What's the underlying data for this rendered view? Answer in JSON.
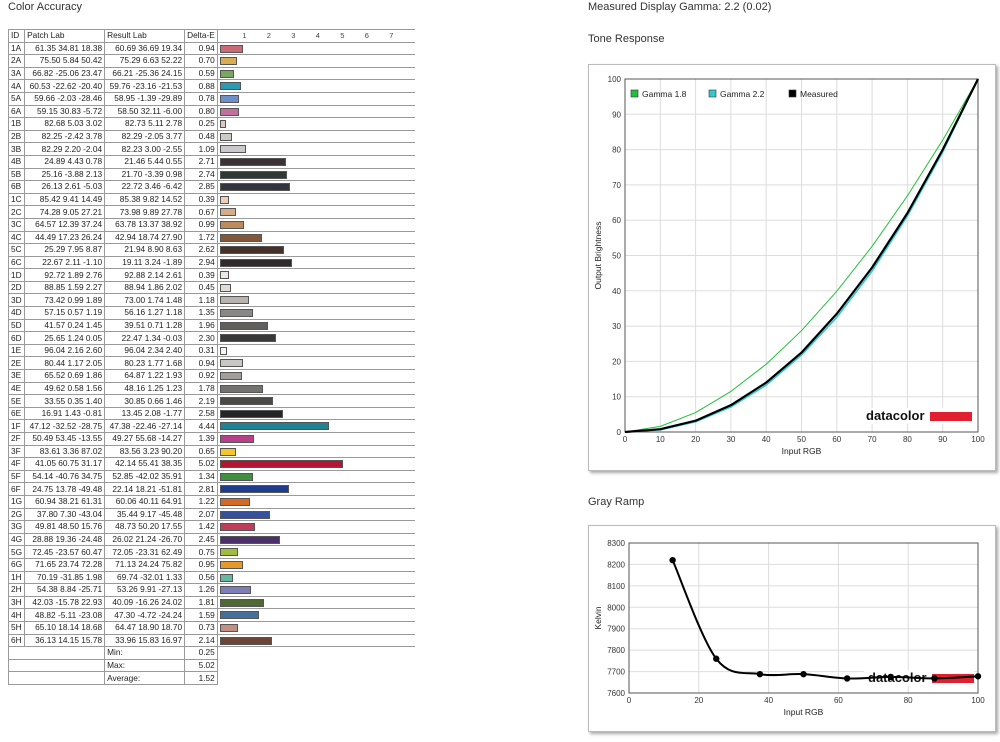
{
  "color_accuracy": {
    "title": "Color Accuracy",
    "headers": [
      "ID",
      "Patch Lab",
      "Result Lab",
      "Delta-E"
    ],
    "scale": [
      "1",
      "2",
      "3",
      "4",
      "5",
      "6",
      "7"
    ],
    "rows": [
      {
        "id": "1A",
        "patch": "61.35  34.81  18.38",
        "result": "60.69  36.69  19.34",
        "de": "0.94",
        "de_value": 0.94,
        "color": "#c96a74"
      },
      {
        "id": "2A",
        "patch": "75.50  5.84  50.42",
        "result": "75.29  6.63  52.22",
        "de": "0.70",
        "de_value": 0.7,
        "color": "#d8ae55"
      },
      {
        "id": "3A",
        "patch": "66.82 -25.06  23.47",
        "result": "66.21 -25.36  24.15",
        "de": "0.59",
        "de_value": 0.59,
        "color": "#78a85d"
      },
      {
        "id": "4A",
        "patch": "60.53 -22.62 -20.40",
        "result": "59.76 -23.16 -21.53",
        "de": "0.88",
        "de_value": 0.88,
        "color": "#2b9ab3"
      },
      {
        "id": "5A",
        "patch": "59.66  -2.03 -28.46",
        "result": "58.95  -1.39 -29.89",
        "de": "0.78",
        "de_value": 0.78,
        "color": "#6d8fcc"
      },
      {
        "id": "6A",
        "patch": "59.15  30.83  -5.72",
        "result": "58.50  32.11  -6.00",
        "de": "0.80",
        "de_value": 0.8,
        "color": "#c26fa0"
      },
      {
        "id": "1B",
        "patch": "82.68  5.03  3.02",
        "result": "82.73  5.11  2.78",
        "de": "0.25",
        "de_value": 0.25,
        "color": "#dac9c4"
      },
      {
        "id": "2B",
        "patch": "82.25  -2.42  3.78",
        "result": "82.29  -2.05  3.77",
        "de": "0.48",
        "de_value": 0.48,
        "color": "#c9cdc3"
      },
      {
        "id": "3B",
        "patch": "82.29  2.20  -2.04",
        "result": "82.23  3.00  -2.55",
        "de": "1.09",
        "de_value": 1.09,
        "color": "#ccc9ce"
      },
      {
        "id": "4B",
        "patch": "24.89  4.43  0.78",
        "result": "21.46  5.44  0.55",
        "de": "2.71",
        "de_value": 2.71,
        "color": "#3a3234"
      },
      {
        "id": "5B",
        "patch": "25.16  -3.88  2.13",
        "result": "21.70  -3.39  0.98",
        "de": "2.74",
        "de_value": 2.74,
        "color": "#2f3a33"
      },
      {
        "id": "6B",
        "patch": "26.13  2.61  -5.03",
        "result": "22.72  3.46  -6.42",
        "de": "2.85",
        "de_value": 2.85,
        "color": "#33343d"
      },
      {
        "id": "1C",
        "patch": "85.42  9.41  14.49",
        "result": "85.38  9.82  14.52",
        "de": "0.39",
        "de_value": 0.39,
        "color": "#f0cdb8"
      },
      {
        "id": "2C",
        "patch": "74.28  9.05  27.21",
        "result": "73.98  9.89  27.78",
        "de": "0.67",
        "de_value": 0.67,
        "color": "#d6ad8a"
      },
      {
        "id": "3C",
        "patch": "64.57  12.39  37.24",
        "result": "63.78  13.37  38.92",
        "de": "0.99",
        "de_value": 0.99,
        "color": "#bb8b5c"
      },
      {
        "id": "4C",
        "patch": "44.49  17.23  26.24",
        "result": "42.94  18.74  27.90",
        "de": "1.72",
        "de_value": 1.72,
        "color": "#84563a"
      },
      {
        "id": "5C",
        "patch": "25.29  7.95  8.87",
        "result": "21.94  8.90  8.63",
        "de": "2.62",
        "de_value": 2.62,
        "color": "#45312a"
      },
      {
        "id": "6C",
        "patch": "22.67  2.11  -1.10",
        "result": "19.11  3.24  -1.89",
        "de": "2.94",
        "de_value": 2.94,
        "color": "#2f2b2d"
      },
      {
        "id": "1D",
        "patch": "92.72  1.89  2.76",
        "result": "92.88  2.14  2.61",
        "de": "0.39",
        "de_value": 0.39,
        "color": "#ece8e5"
      },
      {
        "id": "2D",
        "patch": "88.85  1.59  2.27",
        "result": "88.94  1.86  2.02",
        "de": "0.45",
        "de_value": 0.45,
        "color": "#e0dcda"
      },
      {
        "id": "3D",
        "patch": "73.42  0.99  1.89",
        "result": "73.00  1.74  1.48",
        "de": "1.18",
        "de_value": 1.18,
        "color": "#b7b4b2"
      },
      {
        "id": "4D",
        "patch": "57.15  0.57  1.19",
        "result": "56.16  1.27  1.18",
        "de": "1.35",
        "de_value": 1.35,
        "color": "#8a8887"
      },
      {
        "id": "5D",
        "patch": "41.57  0.24  1.45",
        "result": "39.51  0.71  1.28",
        "de": "1.96",
        "de_value": 1.96,
        "color": "#605f5e"
      },
      {
        "id": "6D",
        "patch": "25.65  1.24  0.05",
        "result": "22.47  1.34  -0.03",
        "de": "2.30",
        "de_value": 2.3,
        "color": "#393838"
      },
      {
        "id": "1E",
        "patch": "96.04  2.16  2.60",
        "result": "96.04  2.34  2.40",
        "de": "0.31",
        "de_value": 0.31,
        "color": "#f8f5f2"
      },
      {
        "id": "2E",
        "patch": "80.44  1.17  2.05",
        "result": "80.23  1.77  1.68",
        "de": "0.94",
        "de_value": 0.94,
        "color": "#c9c6c3"
      },
      {
        "id": "3E",
        "patch": "65.52  0.69  1.86",
        "result": "64.87  1.22  1.93",
        "de": "0.92",
        "de_value": 0.92,
        "color": "#a09d9b"
      },
      {
        "id": "4E",
        "patch": "49.62  0.58  1.56",
        "result": "48.16  1.25  1.23",
        "de": "1.78",
        "de_value": 1.78,
        "color": "#737271"
      },
      {
        "id": "5E",
        "patch": "33.55  0.35  1.40",
        "result": "30.85  0.66  1.46",
        "de": "2.19",
        "de_value": 2.19,
        "color": "#4a4948"
      },
      {
        "id": "6E",
        "patch": "16.91  1.43  -0.81",
        "result": "13.45  2.08  -1.77",
        "de": "2.58",
        "de_value": 2.58,
        "color": "#262526"
      },
      {
        "id": "1F",
        "patch": "47.12 -32.52 -28.75",
        "result": "47.38 -22.46 -27.14",
        "de": "4.44",
        "de_value": 4.44,
        "color": "#1e8494"
      },
      {
        "id": "2F",
        "patch": "50.49  53.45 -13.55",
        "result": "49.27  55.68 -14.27",
        "de": "1.39",
        "de_value": 1.39,
        "color": "#b8408a"
      },
      {
        "id": "3F",
        "patch": "83.61  3.36  87.02",
        "result": "83.56  3.23  90.20",
        "de": "0.65",
        "de_value": 0.65,
        "color": "#f2c726"
      },
      {
        "id": "4F",
        "patch": "41.05  60.75  31.17",
        "result": "42.14  55.41  38.35",
        "de": "5.02",
        "de_value": 5.02,
        "color": "#b31632"
      },
      {
        "id": "5F",
        "patch": "54.14 -40.76  34.75",
        "result": "52.85 -42.02  35.91",
        "de": "1.34",
        "de_value": 1.34,
        "color": "#3f8f3f"
      },
      {
        "id": "6F",
        "patch": "24.75  13.78 -49.48",
        "result": "22.14  18.21 -51.81",
        "de": "2.81",
        "de_value": 2.81,
        "color": "#1f3c8c"
      },
      {
        "id": "1G",
        "patch": "60.94  38.21  61.31",
        "result": "60.06  40.11  64.91",
        "de": "1.22",
        "de_value": 1.22,
        "color": "#d46a25"
      },
      {
        "id": "2G",
        "patch": "37.80  7.30 -43.04",
        "result": "35.44  9.17 -45.48",
        "de": "2.07",
        "de_value": 2.07,
        "color": "#35509e"
      },
      {
        "id": "3G",
        "patch": "49.81  48.50  15.76",
        "result": "48.73  50.20  17.55",
        "de": "1.42",
        "de_value": 1.42,
        "color": "#c03d5a"
      },
      {
        "id": "4G",
        "patch": "28.88  19.36 -24.48",
        "result": "26.02  21.24 -26.70",
        "de": "2.45",
        "de_value": 2.45,
        "color": "#4a2f68"
      },
      {
        "id": "5G",
        "patch": "72.45 -23.57  60.47",
        "result": "72.05 -23.31  62.49",
        "de": "0.75",
        "de_value": 0.75,
        "color": "#9ebd3d"
      },
      {
        "id": "6G",
        "patch": "71.65  23.74  72.28",
        "result": "71.13  24.24  75.82",
        "de": "0.95",
        "de_value": 0.95,
        "color": "#e6982a"
      },
      {
        "id": "1H",
        "patch": "70.19 -31.85  1.98",
        "result": "69.74 -32.01  1.33",
        "de": "0.56",
        "de_value": 0.56,
        "color": "#64b99f"
      },
      {
        "id": "2H",
        "patch": "54.38  8.84 -25.71",
        "result": "53.26  9.91 -27.13",
        "de": "1.26",
        "de_value": 1.26,
        "color": "#7d7eb8"
      },
      {
        "id": "3H",
        "patch": "42.03 -15.78  22.93",
        "result": "40.09 -16.26  24.02",
        "de": "1.81",
        "de_value": 1.81,
        "color": "#4f6a35"
      },
      {
        "id": "4H",
        "patch": "48.82  -5.11 -23.08",
        "result": "47.30  -4.72 -24.24",
        "de": "1.59",
        "de_value": 1.59,
        "color": "#466f9c"
      },
      {
        "id": "5H",
        "patch": "65.10  18.14  18.68",
        "result": "64.47  18.90  18.70",
        "de": "0.73",
        "de_value": 0.73,
        "color": "#c38f80"
      },
      {
        "id": "6H",
        "patch": "36.13  14.15  15.78",
        "result": "33.96  15.83  16.97",
        "de": "2.14",
        "de_value": 2.14,
        "color": "#6d4536"
      }
    ],
    "summary": [
      {
        "label": "Min:",
        "value": "0.25"
      },
      {
        "label": "Max:",
        "value": "5.02"
      },
      {
        "label": "Average:",
        "value": "1.52"
      }
    ]
  },
  "gamma_title": "Measured Display Gamma: 2.2 (0.02)",
  "tone_title": "Tone Response",
  "gray_title": "Gray Ramp",
  "logo_text": "datacolor",
  "chart_data": [
    {
      "type": "line",
      "title": "",
      "xlabel": "Input RGB",
      "ylabel": "Output Brightness",
      "xlim": [
        0,
        100
      ],
      "ylim": [
        0,
        100
      ],
      "xticks": [
        "0",
        "10",
        "20",
        "30",
        "40",
        "50",
        "60",
        "70",
        "80",
        "90",
        "100"
      ],
      "yticks": [
        "0",
        "10",
        "20",
        "30",
        "40",
        "50",
        "60",
        "70",
        "80",
        "90",
        "100"
      ],
      "grid": true,
      "legend_position": "top-left",
      "x": [
        0,
        10,
        20,
        30,
        40,
        50,
        60,
        70,
        80,
        90,
        100
      ],
      "series": [
        {
          "name": "Gamma 1.8",
          "color": "#22c03a",
          "values": [
            0,
            1.6,
            5.5,
            11.5,
            19.2,
            28.7,
            39.9,
            52.6,
            66.9,
            82.7,
            100
          ]
        },
        {
          "name": "Gamma 2.2",
          "color": "#33c8cc",
          "values": [
            0,
            0.6,
            2.9,
            7.1,
            13.3,
            21.8,
            32.5,
            45.6,
            61.2,
            79.3,
            100
          ]
        },
        {
          "name": "Measured",
          "color": "#000000",
          "values": [
            0,
            0.8,
            3.2,
            7.6,
            14.0,
            22.5,
            33.5,
            46.6,
            62.0,
            80.0,
            100
          ]
        }
      ]
    },
    {
      "type": "line",
      "title": "",
      "xlabel": "Input RGB",
      "ylabel": "Kelvin",
      "xlim": [
        0,
        100
      ],
      "ylim": [
        7600,
        8300
      ],
      "xticks": [
        "0",
        "20",
        "40",
        "60",
        "80",
        "100"
      ],
      "yticks": [
        "7600",
        "7700",
        "7800",
        "7900",
        "8000",
        "8100",
        "8200",
        "8300"
      ],
      "grid": true,
      "series": [
        {
          "name": "",
          "color": "#000000",
          "x": [
            12.5,
            25,
            37.5,
            50,
            62.5,
            75,
            87.5,
            100
          ],
          "values": [
            8220,
            7760,
            7688,
            7688,
            7668,
            7675,
            7668,
            7678
          ]
        }
      ]
    }
  ]
}
